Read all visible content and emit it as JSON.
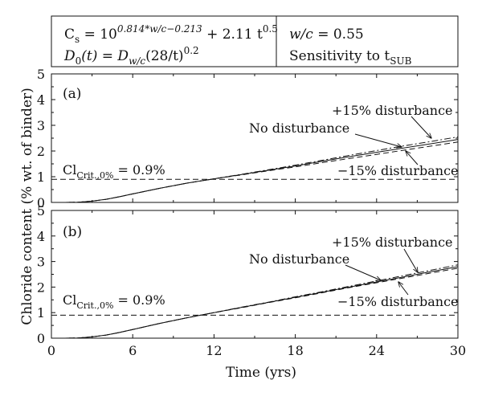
{
  "header": {
    "cs_prefix": "C",
    "cs_sub": "s",
    "cs_mid": " = 10",
    "cs_exp": "0.814*w/c−0.213",
    "cs_plus": " + 2.11 t",
    "cs_exp2": "0.5",
    "d_lhs": "D",
    "d_lhs_sub": "0",
    "d_mid": "(t) = D",
    "d_sub": "w/c",
    "d_rest": "(28/t)",
    "d_exp": "0.2",
    "wc_label": "w/c",
    "wc_value": " = 0.55",
    "sens_label": "Sensitivity to t",
    "sens_sub": "SUB"
  },
  "chart_data": [
    {
      "type": "line",
      "panel_label": "(a)",
      "xlabel": "Time (yrs)",
      "ylabel": "Chloride content (% wt. of binder)",
      "xlim": [
        0,
        30
      ],
      "ylim": [
        0,
        5
      ],
      "xticks": [
        0,
        6,
        12,
        18,
        24,
        30
      ],
      "yticks": [
        0,
        1,
        2,
        3,
        4,
        5
      ],
      "x": [
        0,
        1,
        2,
        3,
        4,
        5,
        6,
        8,
        10,
        12,
        14,
        16,
        18,
        20,
        22,
        24,
        26,
        28,
        30
      ],
      "series": [
        {
          "name": "No disturbance",
          "dash": "solid",
          "values": [
            0,
            0,
            0.01,
            0.05,
            0.12,
            0.22,
            0.33,
            0.55,
            0.75,
            0.92,
            1.08,
            1.25,
            1.42,
            1.6,
            1.78,
            1.95,
            2.12,
            2.28,
            2.45
          ]
        },
        {
          "name": "+15% disturbance",
          "dash": "dashdot",
          "values": [
            0,
            0,
            0.01,
            0.05,
            0.12,
            0.22,
            0.33,
            0.55,
            0.75,
            0.92,
            1.09,
            1.27,
            1.45,
            1.64,
            1.83,
            2.02,
            2.2,
            2.37,
            2.55
          ]
        },
        {
          "name": "−15% disturbance",
          "dash": "dashed",
          "values": [
            0,
            0,
            0.01,
            0.05,
            0.12,
            0.22,
            0.33,
            0.55,
            0.75,
            0.92,
            1.07,
            1.23,
            1.38,
            1.55,
            1.71,
            1.87,
            2.03,
            2.19,
            2.35
          ]
        }
      ],
      "threshold": {
        "value": 0.9,
        "label_main": "Cl",
        "label_sub": "Crit.,0%",
        "label_value": " = 0.9%"
      },
      "annotations": {
        "plus": "+15% disturbance",
        "none": "No disturbance",
        "minus": "−15% disturbance"
      }
    },
    {
      "type": "line",
      "panel_label": "(b)",
      "xlabel": "Time (yrs)",
      "ylabel": "Chloride content (% wt. of binder)",
      "xlim": [
        0,
        30
      ],
      "ylim": [
        0,
        5
      ],
      "xticks": [
        0,
        6,
        12,
        18,
        24,
        30
      ],
      "yticks": [
        0,
        1,
        2,
        3,
        4,
        5
      ],
      "x": [
        0,
        1,
        2,
        3,
        4,
        5,
        6,
        8,
        10,
        12,
        14,
        16,
        18,
        20,
        22,
        24,
        26,
        28,
        30
      ],
      "series": [
        {
          "name": "No disturbance",
          "dash": "solid",
          "values": [
            0,
            0,
            0.01,
            0.05,
            0.12,
            0.22,
            0.34,
            0.58,
            0.8,
            1.0,
            1.2,
            1.4,
            1.6,
            1.8,
            2.0,
            2.2,
            2.4,
            2.6,
            2.8
          ]
        },
        {
          "name": "+15% disturbance",
          "dash": "dashdot",
          "values": [
            0,
            0,
            0.01,
            0.05,
            0.12,
            0.22,
            0.34,
            0.58,
            0.8,
            1.0,
            1.21,
            1.41,
            1.62,
            1.82,
            2.03,
            2.24,
            2.45,
            2.66,
            2.87
          ]
        },
        {
          "name": "−15% disturbance",
          "dash": "dashed",
          "values": [
            0,
            0,
            0.01,
            0.05,
            0.12,
            0.22,
            0.34,
            0.58,
            0.8,
            1.0,
            1.19,
            1.39,
            1.58,
            1.78,
            1.98,
            2.17,
            2.36,
            2.55,
            2.74
          ]
        }
      ],
      "threshold": {
        "value": 0.9,
        "label_main": "Cl",
        "label_sub": "Crit.,0%",
        "label_value": " = 0.9%"
      },
      "annotations": {
        "plus": "+15% disturbance",
        "none": "No disturbance",
        "minus": "−15% disturbance"
      }
    }
  ]
}
